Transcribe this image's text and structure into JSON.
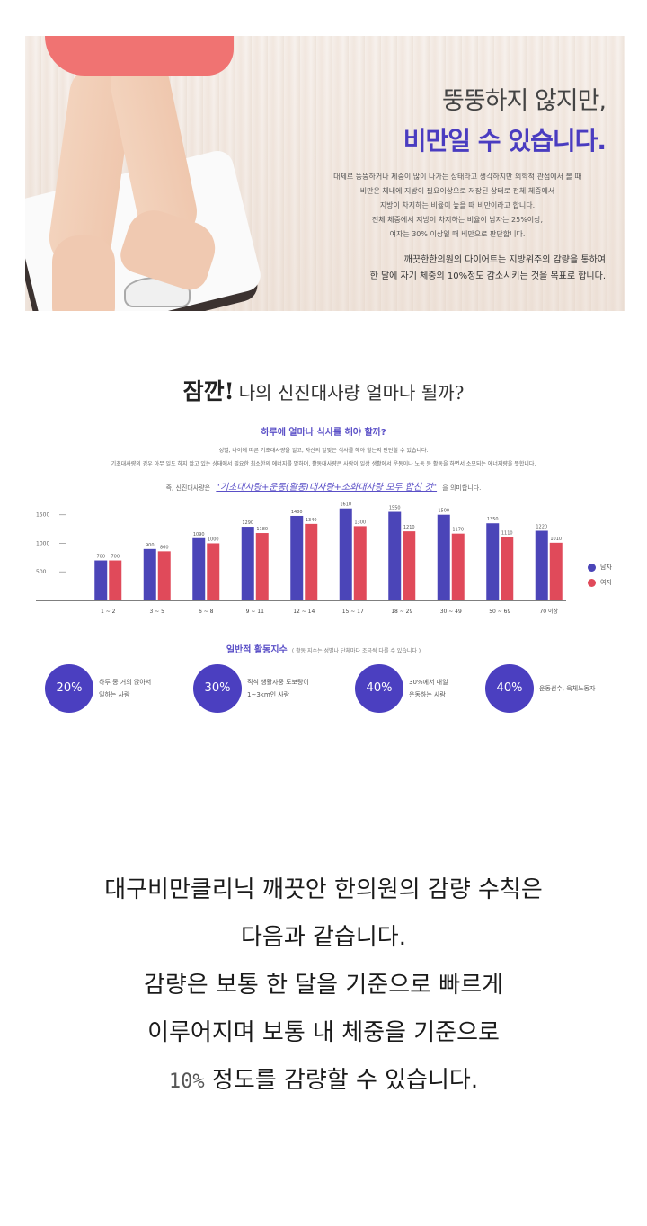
{
  "hero": {
    "title_line1": "뚱뚱하지 않지만,",
    "title_line2": "비만일 수 있습니다.",
    "para1": [
      "대체로 뚱뚱하거나 체중이 많이 나가는 상태라고 생각하지만 의학적 관점에서 볼 때",
      "비만은 체내에 지방이 필요이상으로 저장된 상태로 전체 체중에서",
      "지방이 차지하는 비율이 높을 때 비만이라고 합니다.",
      "전체 체중에서 지방이 차지하는 비율이 남자는 25%이상,",
      "여자는 30% 이상일 때 비만으로 판단합니다."
    ],
    "para2": [
      "깨끗한한의원의 다이어트는 지방위주의 감량을 통하여",
      "한 달에 자기 체중의 10%정도 감소시키는 것을 목표로 합니다."
    ]
  },
  "info": {
    "title_big": "잠깐!",
    "title_rest": "나의 신진대사량 얼마나 될까?",
    "question": "하루에 얼마나 식사를 해야 할까?",
    "desc1": "성별, 나이에 따른 기초대사량을 알고, 자신의 알맞은 식사를 해야 할는지 판단할 수 있습니다.",
    "desc2": "기초대사량의 경우 아무 일도 하지 않고 있는 상태에서 필요한 최소한의 에너지를 말하며, 활동대사량은 사람이 일상 생활에서 운동이나 노동 등 활동을 하면서 소모되는 에너지량을 뜻합니다.",
    "formula_pre": "즉, 신진대사량은",
    "formula_hl": "\"기초대사량+운동(활동)대사량+소화대사량 모두 합친 것\"",
    "formula_post": "을 의미합니다."
  },
  "chart_data": {
    "type": "bar",
    "categories": [
      "1 ~ 2",
      "3 ~ 5",
      "6 ~ 8",
      "9 ~ 11",
      "12 ~ 14",
      "15 ~ 17",
      "18 ~ 29",
      "30 ~ 49",
      "50 ~ 69",
      "70 이상"
    ],
    "series": [
      {
        "name": "남자",
        "color": "#4b45b8",
        "values": [
          700,
          900,
          1090,
          1290,
          1480,
          1610,
          1550,
          1500,
          1350,
          1220
        ]
      },
      {
        "name": "여자",
        "color": "#e04a5a",
        "values": [
          700,
          860,
          1000,
          1180,
          1340,
          1300,
          1210,
          1170,
          1110,
          1010
        ]
      }
    ],
    "yticks": [
      1500,
      1000,
      500
    ],
    "ylim": [
      0,
      1700
    ],
    "legend_position": "right"
  },
  "activity": {
    "title": "일반적 활동지수",
    "note": "( 활동 지수는 성별나 단체마다 조금씩 다를 수 있습니다 )",
    "items": [
      {
        "pct": "20%",
        "label1": "하루 종 거의 앉아서",
        "label2": "일하는 사람"
      },
      {
        "pct": "30%",
        "label1": "직식 생활자중 도보량이",
        "label2": "1~3km인 사람"
      },
      {
        "pct": "40%",
        "label1": "30%에서 매일",
        "label2": "운동하는 사람"
      },
      {
        "pct": "40%",
        "label1": "운동선수, 육체노동자",
        "label2": ""
      }
    ]
  },
  "body": {
    "line1": "대구비만클리닉 깨끗안 한의원의 감량 수칙은",
    "line2": "다음과 같습니다.",
    "line3": "감량은 보통 한 달을 기준으로 빠르게",
    "line4": "이루어지며 보통 내 체중을 기준으로",
    "line5_num": "10%",
    "line5_rest": " 정도를 감량할 수 있습니다."
  }
}
